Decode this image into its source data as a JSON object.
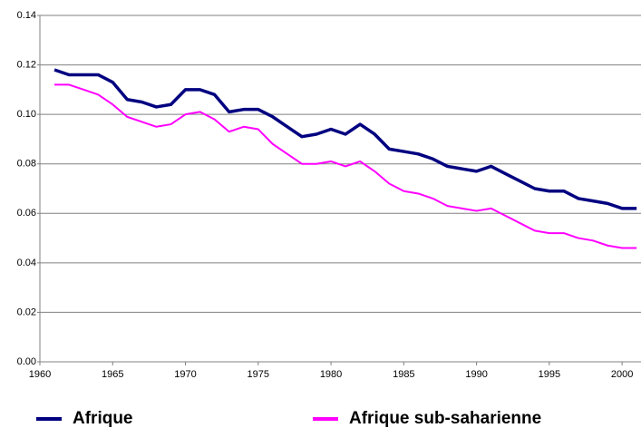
{
  "chart_data": {
    "type": "line",
    "x": [
      1961,
      1962,
      1963,
      1964,
      1965,
      1966,
      1967,
      1968,
      1969,
      1970,
      1971,
      1972,
      1973,
      1974,
      1975,
      1976,
      1977,
      1978,
      1979,
      1980,
      1981,
      1982,
      1983,
      1984,
      1985,
      1986,
      1987,
      1988,
      1989,
      1990,
      1991,
      1992,
      1993,
      1994,
      1995,
      1996,
      1997,
      1998,
      1999,
      2000,
      2001
    ],
    "series": [
      {
        "name": "Afrique",
        "color": "#000080",
        "values": [
          0.118,
          0.116,
          0.116,
          0.116,
          0.113,
          0.106,
          0.105,
          0.103,
          0.104,
          0.11,
          0.11,
          0.108,
          0.101,
          0.102,
          0.102,
          0.099,
          0.095,
          0.091,
          0.092,
          0.094,
          0.092,
          0.096,
          0.092,
          0.086,
          0.085,
          0.084,
          0.082,
          0.079,
          0.078,
          0.077,
          0.079,
          0.076,
          0.073,
          0.07,
          0.069,
          0.069,
          0.066,
          0.065,
          0.064,
          0.062,
          0.062
        ]
      },
      {
        "name": "Afrique sub-saharienne",
        "color": "#ff00ff",
        "values": [
          0.112,
          0.112,
          0.11,
          0.108,
          0.104,
          0.099,
          0.097,
          0.095,
          0.096,
          0.1,
          0.101,
          0.098,
          0.093,
          0.095,
          0.094,
          0.088,
          0.084,
          0.08,
          0.08,
          0.081,
          0.079,
          0.081,
          0.077,
          0.072,
          0.069,
          0.068,
          0.066,
          0.063,
          0.062,
          0.061,
          0.062,
          0.059,
          0.056,
          0.053,
          0.052,
          0.052,
          0.05,
          0.049,
          0.047,
          0.046,
          0.046
        ]
      }
    ],
    "xlim": [
      1960,
      2001.3
    ],
    "xticks": [
      1960,
      1965,
      1970,
      1975,
      1980,
      1985,
      1990,
      1995,
      2000
    ],
    "ylim": [
      0,
      0.14
    ],
    "yticks": [
      {
        "value": 0,
        "label": "0.00"
      },
      0.02,
      0.04,
      0.06,
      0.08,
      {
        "value": 0.1,
        "label": "0.10"
      },
      0.12,
      0.14
    ],
    "grid": true,
    "legend": "bottom"
  }
}
